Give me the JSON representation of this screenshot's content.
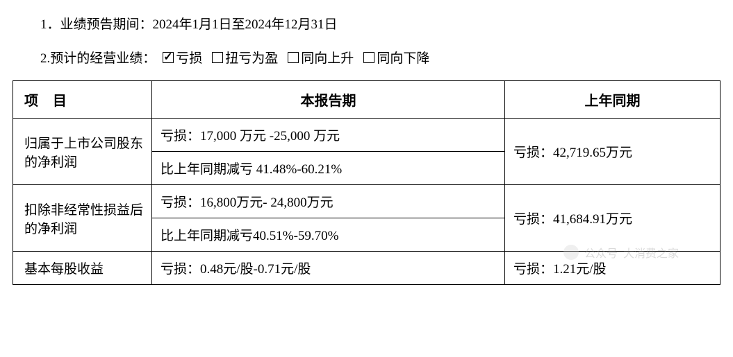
{
  "line1": {
    "prefix": "1．业绩预告期间：",
    "period": "2024年1月1日至2024年12月31日"
  },
  "line2": {
    "prefix": "2.预计的经营业绩：",
    "options": [
      {
        "label": "亏损",
        "checked": true
      },
      {
        "label": "扭亏为盈",
        "checked": false
      },
      {
        "label": "同向上升",
        "checked": false
      },
      {
        "label": "同向下降",
        "checked": false
      }
    ]
  },
  "table": {
    "headers": {
      "item": "项  目",
      "current": "本报告期",
      "previous": "上年同期"
    },
    "rows": [
      {
        "item": "归属于上市公司股东的净利润",
        "current_top": "亏损：17,000 万元 -25,000 万元",
        "current_bottom": "比上年同期减亏 41.48%-60.21%",
        "previous": "亏损：42,719.65万元"
      },
      {
        "item": "扣除非经常性损益后的净利润",
        "current_top": "亏损：16,800万元- 24,800万元",
        "current_bottom": "比上年同期减亏40.51%-59.70%",
        "previous": "亏损：41,684.91万元"
      },
      {
        "item": "基本每股收益",
        "current": "亏损：0.48元/股-0.71元/股",
        "previous": "亏损：1.21元/股"
      }
    ]
  },
  "watermark": {
    "text1": "公众号",
    "text2": "大消费之家"
  },
  "styles": {
    "border_color": "#000000",
    "font_family": "SimSun",
    "body_fontsize": 19,
    "header_fontsize": 20
  }
}
